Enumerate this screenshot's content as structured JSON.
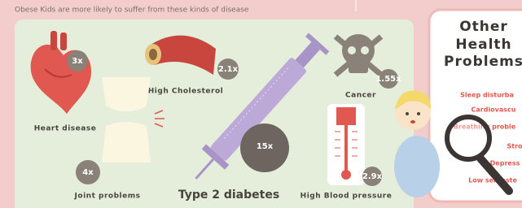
{
  "header": "Obese Kids are more likely to suffer from these kinds of disease",
  "items": [
    {
      "label": "Heart disease",
      "multiplier": "3x"
    },
    {
      "label": "High Cholesterol",
      "multiplier": "2.1x"
    },
    {
      "label": "Cancer",
      "multiplier": "1.55x"
    },
    {
      "label": "Joint problems",
      "multiplier": "4x"
    },
    {
      "label": "Type 2 diabetes",
      "multiplier": "15x"
    },
    {
      "label": "High Blood pressure",
      "multiplier": "2.9x"
    }
  ],
  "side": {
    "title": [
      "Other",
      "Health",
      "Problems"
    ],
    "items": [
      "Sleep disturba",
      "Cardiovascu",
      "Breathing proble",
      "Stro",
      "Depress",
      "Low self-este"
    ]
  }
}
